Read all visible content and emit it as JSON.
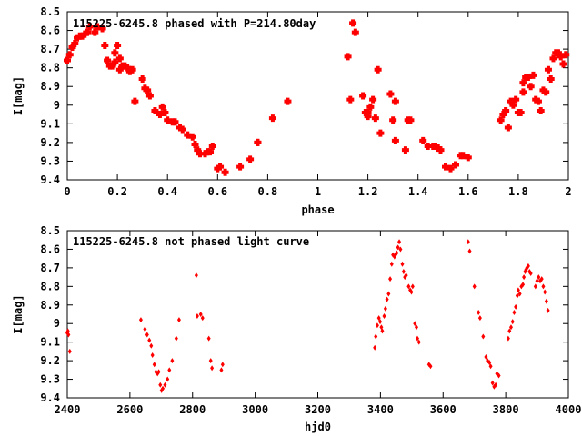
{
  "chart_data": [
    {
      "type": "scatter",
      "title": "115225-6245.8 phased with P=214.80day",
      "xlabel": "phase",
      "ylabel": "I[mag]",
      "xlim": [
        0,
        2
      ],
      "ylim": [
        9.4,
        8.5
      ],
      "y_inverted": true,
      "grid": false,
      "x_ticks": [
        "0",
        "0.2",
        "0.4",
        "0.6",
        "0.8",
        "1",
        "1.2",
        "1.4",
        "1.6",
        "1.8",
        "2"
      ],
      "y_ticks": [
        "8.5",
        "8.6",
        "8.7",
        "8.8",
        "8.9",
        "9",
        "9.1",
        "9.2",
        "9.3",
        "9.4"
      ],
      "color": "#ff0000",
      "marker": "plus-large",
      "series": [
        {
          "points": [
            [
              0.0,
              8.76
            ],
            [
              0.01,
              8.73
            ],
            [
              0.02,
              8.69
            ],
            [
              0.03,
              8.67
            ],
            [
              0.04,
              8.64
            ],
            [
              0.05,
              8.63
            ],
            [
              0.06,
              8.63
            ],
            [
              0.07,
              8.62
            ],
            [
              0.08,
              8.61
            ],
            [
              0.09,
              8.58
            ],
            [
              0.11,
              8.61
            ],
            [
              0.12,
              8.58
            ],
            [
              0.14,
              8.59
            ],
            [
              0.15,
              8.68
            ],
            [
              0.16,
              8.76
            ],
            [
              0.17,
              8.79
            ],
            [
              0.18,
              8.79
            ],
            [
              0.19,
              8.77
            ],
            [
              0.19,
              8.72
            ],
            [
              0.2,
              8.68
            ],
            [
              0.21,
              8.75
            ],
            [
              0.21,
              8.81
            ],
            [
              0.22,
              8.79
            ],
            [
              0.23,
              8.79
            ],
            [
              0.24,
              8.8
            ],
            [
              0.25,
              8.82
            ],
            [
              0.26,
              8.81
            ],
            [
              0.27,
              8.98
            ],
            [
              0.3,
              8.86
            ],
            [
              0.31,
              8.91
            ],
            [
              0.32,
              8.92
            ],
            [
              0.33,
              8.95
            ],
            [
              0.35,
              9.03
            ],
            [
              0.37,
              9.05
            ],
            [
              0.38,
              9.01
            ],
            [
              0.39,
              9.04
            ],
            [
              0.4,
              9.08
            ],
            [
              0.42,
              9.09
            ],
            [
              0.43,
              9.09
            ],
            [
              0.45,
              9.12
            ],
            [
              0.46,
              9.13
            ],
            [
              0.48,
              9.16
            ],
            [
              0.5,
              9.17
            ],
            [
              0.51,
              9.21
            ],
            [
              0.52,
              9.24
            ],
            [
              0.53,
              9.26
            ],
            [
              0.55,
              9.26
            ],
            [
              0.56,
              9.25
            ],
            [
              0.57,
              9.25
            ],
            [
              0.58,
              9.22
            ],
            [
              0.6,
              9.34
            ],
            [
              0.61,
              9.33
            ],
            [
              0.63,
              9.36
            ],
            [
              0.69,
              9.33
            ],
            [
              0.73,
              9.29
            ],
            [
              0.76,
              9.2
            ],
            [
              0.76,
              9.2
            ],
            [
              0.82,
              9.07
            ],
            [
              0.88,
              8.98
            ],
            [
              1.12,
              8.74
            ],
            [
              1.13,
              8.97
            ],
            [
              1.14,
              8.56
            ],
            [
              1.15,
              8.61
            ],
            [
              1.18,
              8.95
            ],
            [
              1.19,
              9.04
            ],
            [
              1.2,
              9.06
            ],
            [
              1.2,
              9.04
            ],
            [
              1.21,
              9.01
            ],
            [
              1.22,
              8.97
            ],
            [
              1.23,
              9.07
            ],
            [
              1.24,
              8.81
            ],
            [
              1.25,
              9.15
            ],
            [
              1.29,
              8.94
            ],
            [
              1.3,
              9.08
            ],
            [
              1.31,
              8.98
            ],
            [
              1.31,
              9.19
            ],
            [
              1.35,
              9.24
            ],
            [
              1.36,
              9.08
            ],
            [
              1.37,
              9.08
            ],
            [
              1.42,
              9.19
            ],
            [
              1.44,
              9.22
            ],
            [
              1.46,
              9.22
            ],
            [
              1.47,
              9.22
            ],
            [
              1.48,
              9.23
            ],
            [
              1.49,
              9.24
            ],
            [
              1.51,
              9.33
            ],
            [
              1.53,
              9.34
            ],
            [
              1.55,
              9.32
            ],
            [
              1.57,
              9.27
            ],
            [
              1.58,
              9.27
            ],
            [
              1.6,
              9.28
            ],
            [
              1.73,
              9.08
            ],
            [
              1.74,
              9.05
            ],
            [
              1.75,
              9.03
            ],
            [
              1.76,
              9.12
            ],
            [
              1.77,
              8.98
            ],
            [
              1.78,
              9.0
            ],
            [
              1.79,
              8.97
            ],
            [
              1.8,
              9.04
            ],
            [
              1.81,
              9.04
            ],
            [
              1.82,
              8.88
            ],
            [
              1.82,
              8.93
            ],
            [
              1.83,
              8.85
            ],
            [
              1.84,
              8.85
            ],
            [
              1.85,
              8.9
            ],
            [
              1.86,
              8.84
            ],
            [
              1.87,
              8.97
            ],
            [
              1.88,
              8.98
            ],
            [
              1.89,
              9.03
            ],
            [
              1.9,
              8.92
            ],
            [
              1.91,
              8.93
            ],
            [
              1.92,
              8.81
            ],
            [
              1.93,
              8.86
            ],
            [
              1.94,
              8.75
            ],
            [
              1.95,
              8.72
            ],
            [
              1.96,
              8.72
            ],
            [
              1.97,
              8.74
            ],
            [
              1.98,
              8.78
            ],
            [
              1.99,
              8.73
            ]
          ]
        }
      ]
    },
    {
      "type": "scatter",
      "title": "115225-6245.8 not phased light curve",
      "xlabel": "hjd0",
      "ylabel": "I[mag]",
      "xlim": [
        2400,
        4000
      ],
      "ylim": [
        9.4,
        8.5
      ],
      "y_inverted": true,
      "grid": false,
      "x_ticks": [
        "2400",
        "2600",
        "2800",
        "3000",
        "3200",
        "3400",
        "3600",
        "3800",
        "4000"
      ],
      "y_ticks": [
        "8.5",
        "8.6",
        "8.7",
        "8.8",
        "8.9",
        "9",
        "9.1",
        "9.2",
        "9.3",
        "9.4"
      ],
      "color": "#ff0000",
      "marker": "diamond-small",
      "series": [
        {
          "points": [
            [
              2400,
              9.05
            ],
            [
              2402,
              9.04
            ],
            [
              2404,
              9.06
            ],
            [
              2408,
              9.15
            ],
            [
              2635,
              8.98
            ],
            [
              2648,
              9.03
            ],
            [
              2655,
              9.06
            ],
            [
              2662,
              9.09
            ],
            [
              2668,
              9.12
            ],
            [
              2672,
              9.17
            ],
            [
              2678,
              9.22
            ],
            [
              2683,
              9.26
            ],
            [
              2688,
              9.27
            ],
            [
              2692,
              9.26
            ],
            [
              2697,
              9.33
            ],
            [
              2701,
              9.36
            ],
            [
              2705,
              9.35
            ],
            [
              2712,
              9.33
            ],
            [
              2720,
              9.3
            ],
            [
              2726,
              9.25
            ],
            [
              2735,
              9.2
            ],
            [
              2748,
              9.08
            ],
            [
              2757,
              8.98
            ],
            [
              2812,
              8.74
            ],
            [
              2815,
              8.96
            ],
            [
              2826,
              8.95
            ],
            [
              2832,
              8.97
            ],
            [
              2852,
              9.08
            ],
            [
              2858,
              9.2
            ],
            [
              2862,
              9.24
            ],
            [
              2892,
              9.25
            ],
            [
              2896,
              9.22
            ],
            [
              3382,
              9.13
            ],
            [
              3385,
              9.07
            ],
            [
              3390,
              9.01
            ],
            [
              3395,
              8.97
            ],
            [
              3399,
              8.99
            ],
            [
              3403,
              9.02
            ],
            [
              3406,
              9.04
            ],
            [
              3412,
              8.96
            ],
            [
              3416,
              8.92
            ],
            [
              3421,
              8.87
            ],
            [
              3426,
              8.84
            ],
            [
              3431,
              8.76
            ],
            [
              3436,
              8.68
            ],
            [
              3440,
              8.63
            ],
            [
              3445,
              8.64
            ],
            [
              3448,
              8.63
            ],
            [
              3452,
              8.62
            ],
            [
              3456,
              8.59
            ],
            [
              3460,
              8.56
            ],
            [
              3464,
              8.6
            ],
            [
              3470,
              8.68
            ],
            [
              3474,
              8.72
            ],
            [
              3478,
              8.75
            ],
            [
              3482,
              8.74
            ],
            [
              3490,
              8.8
            ],
            [
              3495,
              8.82
            ],
            [
              3499,
              8.83
            ],
            [
              3503,
              8.8
            ],
            [
              3510,
              9.0
            ],
            [
              3515,
              9.02
            ],
            [
              3518,
              9.08
            ],
            [
              3523,
              9.1
            ],
            [
              3555,
              9.22
            ],
            [
              3560,
              9.23
            ],
            [
              3680,
              8.56
            ],
            [
              3685,
              8.61
            ],
            [
              3700,
              8.8
            ],
            [
              3713,
              8.94
            ],
            [
              3718,
              8.97
            ],
            [
              3728,
              9.07
            ],
            [
              3737,
              9.18
            ],
            [
              3742,
              9.2
            ],
            [
              3748,
              9.21
            ],
            [
              3752,
              9.23
            ],
            [
              3758,
              9.32
            ],
            [
              3763,
              9.34
            ],
            [
              3768,
              9.33
            ],
            [
              3772,
              9.27
            ],
            [
              3778,
              9.28
            ],
            [
              3808,
              9.08
            ],
            [
              3812,
              9.04
            ],
            [
              3817,
              9.02
            ],
            [
              3822,
              8.99
            ],
            [
              3827,
              8.94
            ],
            [
              3832,
              8.91
            ],
            [
              3837,
              8.85
            ],
            [
              3840,
              8.82
            ],
            [
              3845,
              8.84
            ],
            [
              3850,
              8.8
            ],
            [
              3855,
              8.79
            ],
            [
              3858,
              8.75
            ],
            [
              3862,
              8.72
            ],
            [
              3865,
              8.71
            ],
            [
              3868,
              8.7
            ],
            [
              3872,
              8.69
            ],
            [
              3876,
              8.72
            ],
            [
              3880,
              8.73
            ],
            [
              3895,
              8.8
            ],
            [
              3900,
              8.77
            ],
            [
              3905,
              8.75
            ],
            [
              3910,
              8.77
            ],
            [
              3915,
              8.76
            ],
            [
              3920,
              8.8
            ],
            [
              3925,
              8.83
            ],
            [
              3930,
              8.88
            ],
            [
              3935,
              8.93
            ]
          ]
        }
      ]
    }
  ]
}
